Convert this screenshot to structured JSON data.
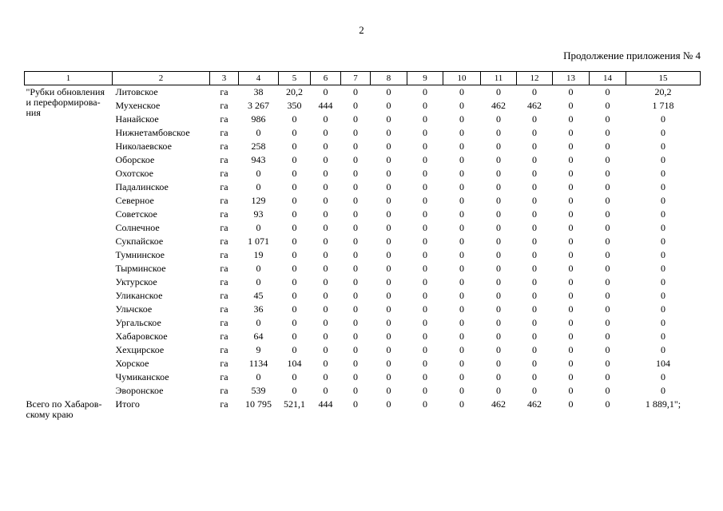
{
  "page": {
    "number": "2",
    "continuation": "Продолжение приложения № 4"
  },
  "table": {
    "column_headers": [
      "1",
      "2",
      "3",
      "4",
      "5",
      "6",
      "7",
      "8",
      "9",
      "10",
      "11",
      "12",
      "13",
      "14",
      "15"
    ],
    "group_label": "\"Рубки обновления\nи переформирова-\nния",
    "total_label": "Всего по Хабаров-\nскому краю",
    "rows": [
      {
        "name": "Литовское",
        "unit": "га",
        "values": [
          "38",
          "20,2",
          "0",
          "0",
          "0",
          "0",
          "0",
          "0",
          "0",
          "0",
          "0",
          "20,2"
        ]
      },
      {
        "name": "Мухенское",
        "unit": "га",
        "values": [
          "3 267",
          "350",
          "444",
          "0",
          "0",
          "0",
          "0",
          "462",
          "462",
          "0",
          "0",
          "1 718"
        ]
      },
      {
        "name": "Нанайское",
        "unit": "га",
        "values": [
          "986",
          "0",
          "0",
          "0",
          "0",
          "0",
          "0",
          "0",
          "0",
          "0",
          "0",
          "0"
        ]
      },
      {
        "name": "Нижнетамбовское",
        "unit": "га",
        "values": [
          "0",
          "0",
          "0",
          "0",
          "0",
          "0",
          "0",
          "0",
          "0",
          "0",
          "0",
          "0"
        ]
      },
      {
        "name": "Николаевское",
        "unit": "га",
        "values": [
          "258",
          "0",
          "0",
          "0",
          "0",
          "0",
          "0",
          "0",
          "0",
          "0",
          "0",
          "0"
        ]
      },
      {
        "name": "Оборское",
        "unit": "га",
        "values": [
          "943",
          "0",
          "0",
          "0",
          "0",
          "0",
          "0",
          "0",
          "0",
          "0",
          "0",
          "0"
        ]
      },
      {
        "name": "Охотское",
        "unit": "га",
        "values": [
          "0",
          "0",
          "0",
          "0",
          "0",
          "0",
          "0",
          "0",
          "0",
          "0",
          "0",
          "0"
        ]
      },
      {
        "name": "Падалинское",
        "unit": "га",
        "values": [
          "0",
          "0",
          "0",
          "0",
          "0",
          "0",
          "0",
          "0",
          "0",
          "0",
          "0",
          "0"
        ]
      },
      {
        "name": "Северное",
        "unit": "га",
        "values": [
          "129",
          "0",
          "0",
          "0",
          "0",
          "0",
          "0",
          "0",
          "0",
          "0",
          "0",
          "0"
        ]
      },
      {
        "name": "Советское",
        "unit": "га",
        "values": [
          "93",
          "0",
          "0",
          "0",
          "0",
          "0",
          "0",
          "0",
          "0",
          "0",
          "0",
          "0"
        ]
      },
      {
        "name": "Солнечное",
        "unit": "га",
        "values": [
          "0",
          "0",
          "0",
          "0",
          "0",
          "0",
          "0",
          "0",
          "0",
          "0",
          "0",
          "0"
        ]
      },
      {
        "name": "Сукпайское",
        "unit": "га",
        "values": [
          "1 071",
          "0",
          "0",
          "0",
          "0",
          "0",
          "0",
          "0",
          "0",
          "0",
          "0",
          "0"
        ]
      },
      {
        "name": "Тумнинское",
        "unit": "га",
        "values": [
          "19",
          "0",
          "0",
          "0",
          "0",
          "0",
          "0",
          "0",
          "0",
          "0",
          "0",
          "0"
        ]
      },
      {
        "name": "Тырминское",
        "unit": "га",
        "values": [
          "0",
          "0",
          "0",
          "0",
          "0",
          "0",
          "0",
          "0",
          "0",
          "0",
          "0",
          "0"
        ]
      },
      {
        "name": "Уктурское",
        "unit": "га",
        "values": [
          "0",
          "0",
          "0",
          "0",
          "0",
          "0",
          "0",
          "0",
          "0",
          "0",
          "0",
          "0"
        ]
      },
      {
        "name": "Уликанское",
        "unit": "га",
        "values": [
          "45",
          "0",
          "0",
          "0",
          "0",
          "0",
          "0",
          "0",
          "0",
          "0",
          "0",
          "0"
        ]
      },
      {
        "name": "Ульчское",
        "unit": "га",
        "values": [
          "36",
          "0",
          "0",
          "0",
          "0",
          "0",
          "0",
          "0",
          "0",
          "0",
          "0",
          "0"
        ]
      },
      {
        "name": "Ургальское",
        "unit": "га",
        "values": [
          "0",
          "0",
          "0",
          "0",
          "0",
          "0",
          "0",
          "0",
          "0",
          "0",
          "0",
          "0"
        ]
      },
      {
        "name": "Хабаровское",
        "unit": "га",
        "values": [
          "64",
          "0",
          "0",
          "0",
          "0",
          "0",
          "0",
          "0",
          "0",
          "0",
          "0",
          "0"
        ]
      },
      {
        "name": "Хехцирское",
        "unit": "га",
        "values": [
          "9",
          "0",
          "0",
          "0",
          "0",
          "0",
          "0",
          "0",
          "0",
          "0",
          "0",
          "0"
        ]
      },
      {
        "name": "Хорское",
        "unit": "га",
        "values": [
          "1134",
          "104",
          "0",
          "0",
          "0",
          "0",
          "0",
          "0",
          "0",
          "0",
          "0",
          "104"
        ]
      },
      {
        "name": "Чумиканское",
        "unit": "га",
        "values": [
          "0",
          "0",
          "0",
          "0",
          "0",
          "0",
          "0",
          "0",
          "0",
          "0",
          "0",
          "0"
        ]
      },
      {
        "name": "Эворонское",
        "unit": "га",
        "values": [
          "539",
          "0",
          "0",
          "0",
          "0",
          "0",
          "0",
          "0",
          "0",
          "0",
          "0",
          "0"
        ]
      }
    ],
    "total_row": {
      "name": "Итого",
      "unit": "га",
      "values": [
        "10 795",
        "521,1",
        "444",
        "0",
        "0",
        "0",
        "0",
        "462",
        "462",
        "0",
        "0",
        "1 889,1\";"
      ]
    }
  }
}
